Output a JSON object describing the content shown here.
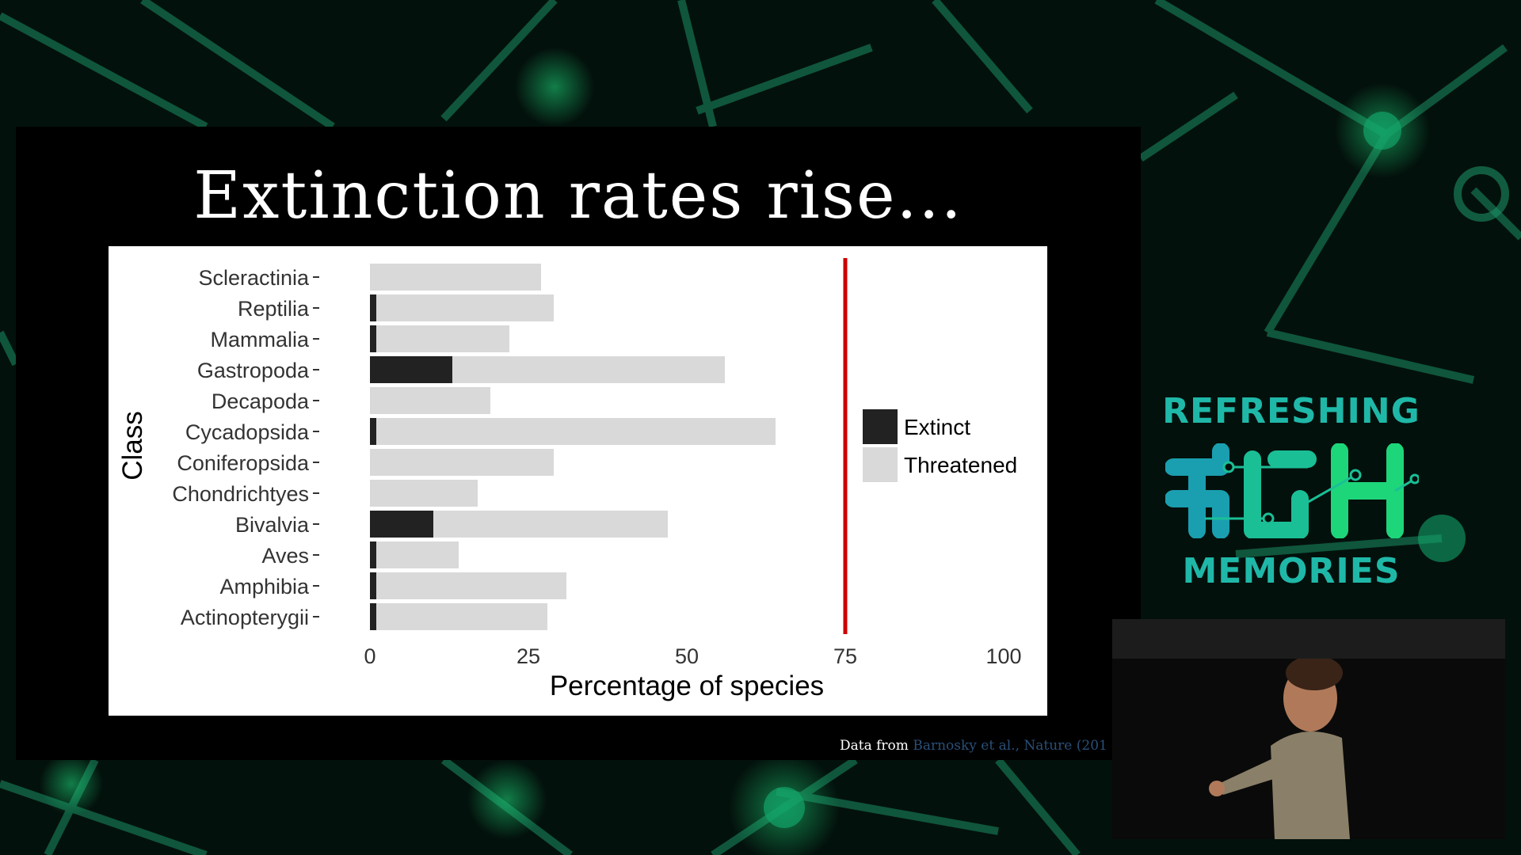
{
  "slide": {
    "title": "Extinction rates rise...",
    "credit_prefix": "Data from",
    "credit_citation": "Barnosky et al., Nature (201"
  },
  "branding": {
    "line1": "REFRESHING",
    "line2": "MEMORIES"
  },
  "chart_data": {
    "type": "bar",
    "orientation": "horizontal",
    "stacked": true,
    "categories": [
      "Scleractinia",
      "Reptilia",
      "Mammalia",
      "Gastropoda",
      "Decapoda",
      "Cycadopsida",
      "Coniferopsida",
      "Chondrichtyes",
      "Bivalvia",
      "Aves",
      "Amphibia",
      "Actinopterygii"
    ],
    "series": [
      {
        "name": "Extinct",
        "color": "#222222",
        "values": [
          0,
          1,
          1,
          13,
          0,
          1,
          0,
          0,
          10,
          1,
          1,
          1
        ]
      },
      {
        "name": "Threatened",
        "color": "#d9d9d9",
        "values": [
          27,
          28,
          21,
          43,
          19,
          63,
          29,
          17,
          37,
          13,
          30,
          27
        ]
      }
    ],
    "xlabel": "Percentage of species",
    "ylabel": "Class",
    "xlim": [
      0,
      100
    ],
    "xticks": [
      0,
      25,
      50,
      75,
      100
    ],
    "reference_line": {
      "x": 75,
      "color": "#cc0000"
    },
    "legend_position": "right",
    "grid": false
  },
  "colors": {
    "slide_background": "#000000",
    "accent_teal": "#1fb8a8",
    "accent_green": "#1ed67a"
  }
}
